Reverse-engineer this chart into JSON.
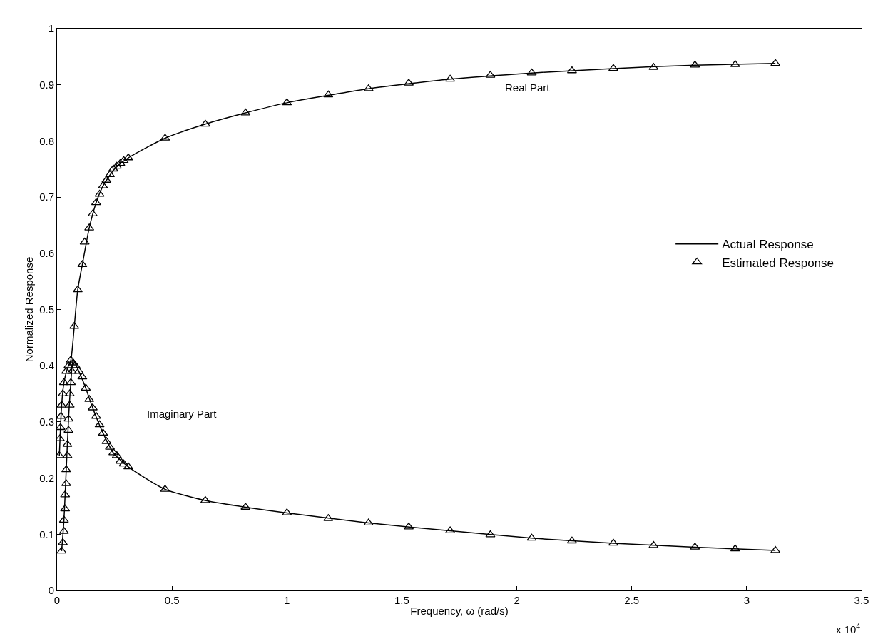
{
  "chart_data": {
    "type": "line",
    "xlabel": "Frequency, ω (rad/s)",
    "ylabel": "Normalized Response",
    "xlim": [
      0,
      3.5
    ],
    "xticks": [
      0,
      0.5,
      1,
      1.5,
      2,
      2.5,
      3,
      3.5
    ],
    "ylim": [
      0,
      1
    ],
    "yticks": [
      0,
      0.1,
      0.2,
      0.3,
      0.4,
      0.5,
      0.6,
      0.7,
      0.8,
      0.9,
      1
    ],
    "legend": "right",
    "annotations": [
      "x 10$^{4}$",
      "Real Part",
      "Imaginary Part"
    ],
    "series": [
      {
        "name": "Actual Response",
        "color": "#000000",
        "marker": "none",
        "line_style": "solid",
        "x": [
          0.01,
          0.02,
          0.03,
          0.045,
          0.06,
          0.075,
          0.09,
          0.11,
          0.14,
          0.17,
          0.2,
          0.25,
          0.31,
          0.47,
          0.645,
          0.82,
          1.0,
          1.355,
          1.71,
          2.065,
          2.42,
          2.775,
          3.125
        ],
        "values": [
          0.24,
          0.33,
          0.37,
          0.395,
          0.41,
          0.47,
          0.535,
          0.58,
          0.645,
          0.69,
          0.72,
          0.75,
          0.77,
          0.805,
          0.83,
          0.85,
          0.868,
          0.893,
          0.91,
          0.921,
          0.929,
          0.935,
          0.938
        ]
      },
      {
        "color": "#000000",
        "marker": "none",
        "line_style": "solid",
        "x": [
          0.02,
          0.03,
          0.04,
          0.05,
          0.06,
          0.07,
          0.095,
          0.125,
          0.155,
          0.2,
          0.245,
          0.31,
          0.47,
          0.645,
          0.82,
          1.0,
          1.355,
          1.71,
          2.065,
          2.42,
          2.775,
          3.125
        ],
        "values": [
          0.07,
          0.125,
          0.215,
          0.305,
          0.37,
          0.41,
          0.39,
          0.36,
          0.325,
          0.28,
          0.245,
          0.22,
          0.18,
          0.16,
          0.148,
          0.138,
          0.12,
          0.106,
          0.093,
          0.084,
          0.077,
          0.071
        ]
      },
      {
        "name": "Estimated Response",
        "type": "scatter",
        "color": "#000000",
        "marker": "triangle",
        "x": [
          0.01,
          0.012,
          0.015,
          0.017,
          0.02,
          0.025,
          0.03,
          0.04,
          0.05,
          0.06,
          0.075,
          0.09,
          0.11,
          0.12,
          0.14,
          0.155,
          0.17,
          0.185,
          0.2,
          0.215,
          0.23,
          0.245,
          0.26,
          0.275,
          0.29,
          0.31,
          0.47,
          0.645,
          0.82,
          1.0,
          1.18,
          1.355,
          1.53,
          1.71,
          1.885,
          2.065,
          2.24,
          2.42,
          2.595,
          2.775,
          2.95,
          3.125
        ],
        "values": [
          0.24,
          0.27,
          0.29,
          0.31,
          0.33,
          0.35,
          0.37,
          0.39,
          0.4,
          0.41,
          0.47,
          0.535,
          0.58,
          0.62,
          0.645,
          0.67,
          0.69,
          0.705,
          0.72,
          0.73,
          0.74,
          0.75,
          0.755,
          0.76,
          0.765,
          0.77,
          0.805,
          0.83,
          0.85,
          0.868,
          0.882,
          0.893,
          0.903,
          0.91,
          0.917,
          0.921,
          0.925,
          0.929,
          0.931,
          0.935,
          0.936,
          0.938
        ]
      },
      {
        "type": "scatter",
        "color": "#000000",
        "marker": "triangle",
        "x": [
          0.02,
          0.025,
          0.03,
          0.03,
          0.035,
          0.035,
          0.04,
          0.04,
          0.045,
          0.045,
          0.05,
          0.05,
          0.055,
          0.055,
          0.06,
          0.065,
          0.07,
          0.08,
          0.095,
          0.11,
          0.125,
          0.14,
          0.155,
          0.17,
          0.185,
          0.2,
          0.215,
          0.23,
          0.245,
          0.26,
          0.275,
          0.29,
          0.31,
          0.47,
          0.645,
          0.82,
          1.0,
          1.18,
          1.355,
          1.53,
          1.71,
          1.885,
          2.065,
          2.24,
          2.42,
          2.595,
          2.775,
          2.95,
          3.125
        ],
        "values": [
          0.07,
          0.085,
          0.105,
          0.125,
          0.145,
          0.17,
          0.19,
          0.215,
          0.24,
          0.26,
          0.285,
          0.305,
          0.33,
          0.35,
          0.37,
          0.39,
          0.405,
          0.4,
          0.39,
          0.38,
          0.36,
          0.34,
          0.325,
          0.31,
          0.295,
          0.28,
          0.265,
          0.255,
          0.245,
          0.24,
          0.23,
          0.225,
          0.22,
          0.18,
          0.16,
          0.148,
          0.138,
          0.128,
          0.12,
          0.113,
          0.106,
          0.099,
          0.093,
          0.088,
          0.084,
          0.08,
          0.077,
          0.074,
          0.071
        ]
      }
    ]
  }
}
